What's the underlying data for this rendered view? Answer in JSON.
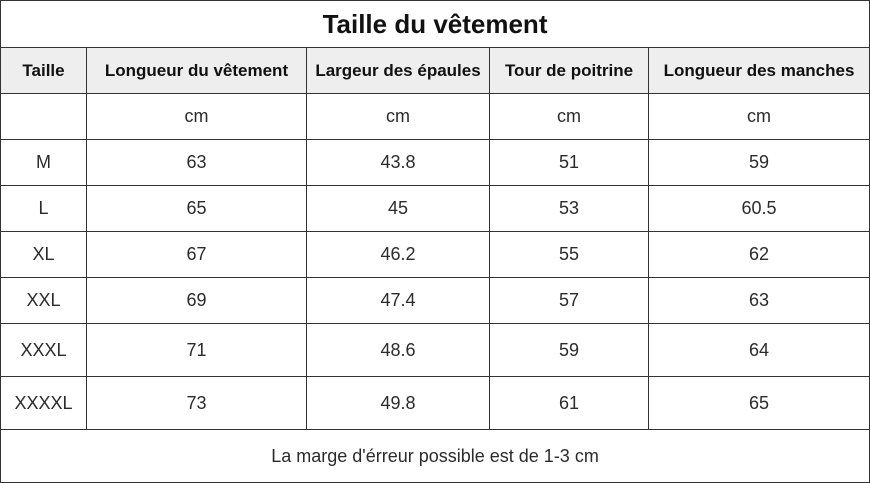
{
  "title": "Taille du vêtement",
  "headers": [
    "Taille",
    "Longueur du vêtement",
    "Largeur des épaules",
    "Tour de poitrine",
    "Longueur des manches"
  ],
  "units": [
    "",
    "cm",
    "cm",
    "cm",
    "cm"
  ],
  "rows": [
    [
      "M",
      "63",
      "43.8",
      "51",
      "59"
    ],
    [
      "L",
      "65",
      "45",
      "53",
      "60.5"
    ],
    [
      "XL",
      "67",
      "46.2",
      "55",
      "62"
    ],
    [
      "XXL",
      "69",
      "47.4",
      "57",
      "63"
    ],
    [
      "XXXL",
      "71",
      "48.6",
      "59",
      "64"
    ],
    [
      "XXXXL",
      "73",
      "49.8",
      "61",
      "65"
    ]
  ],
  "footnote": "La marge d'érreur possible est de 1-3 cm"
}
